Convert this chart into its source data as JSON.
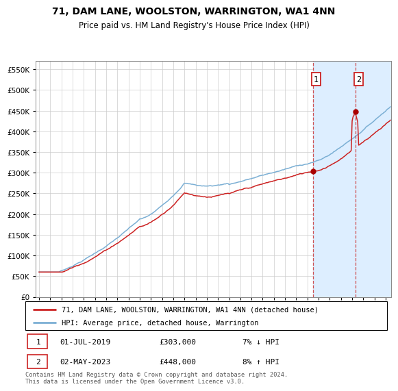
{
  "title": "71, DAM LANE, WOOLSTON, WARRINGTON, WA1 4NN",
  "subtitle": "Price paid vs. HM Land Registry's House Price Index (HPI)",
  "ylim": [
    0,
    570000
  ],
  "yticks": [
    0,
    50000,
    100000,
    150000,
    200000,
    250000,
    300000,
    350000,
    400000,
    450000,
    500000,
    550000
  ],
  "sale1_x": 2019.5,
  "sale1_value": 303000,
  "sale1_label": "01-JUL-2019",
  "sale2_x": 2023.333,
  "sale2_value": 448000,
  "sale2_label": "02-MAY-2023",
  "hpi_line_color": "#7bafd4",
  "price_line_color": "#cc2222",
  "marker_color": "#aa0000",
  "shade_color": "#ddeeff",
  "grid_color": "#cccccc",
  "bg_color": "#ffffff",
  "legend1": "71, DAM LANE, WOOLSTON, WARRINGTON, WA1 4NN (detached house)",
  "legend2": "HPI: Average price, detached house, Warrington",
  "table_row1": [
    "1",
    "01-JUL-2019",
    "£303,000",
    "7% ↓ HPI"
  ],
  "table_row2": [
    "2",
    "02-MAY-2023",
    "£448,000",
    "8% ↑ HPI"
  ],
  "footer": "Contains HM Land Registry data © Crown copyright and database right 2024.\nThis data is licensed under the Open Government Licence v3.0.",
  "xmin": 1994.7,
  "xmax": 2026.5
}
